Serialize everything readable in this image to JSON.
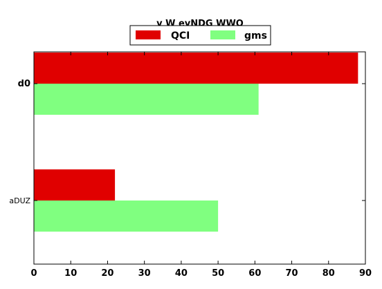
{
  "chart_data": {
    "type": "bar",
    "orientation": "horizontal",
    "title": "v W  evNDG WWO",
    "xlabel": "",
    "ylabel": "",
    "categories": [
      "d0",
      "aDUZ"
    ],
    "series": [
      {
        "name": "QCI",
        "color": "#e00000",
        "values": [
          88,
          22
        ]
      },
      {
        "name": "gms",
        "color": "#80ff80",
        "values": [
          61,
          50
        ]
      }
    ],
    "xlim": [
      0,
      90
    ],
    "xticks": [
      0,
      10,
      20,
      30,
      40,
      50,
      60,
      70,
      80,
      90
    ],
    "grid": false,
    "legend_position": "top-center"
  }
}
